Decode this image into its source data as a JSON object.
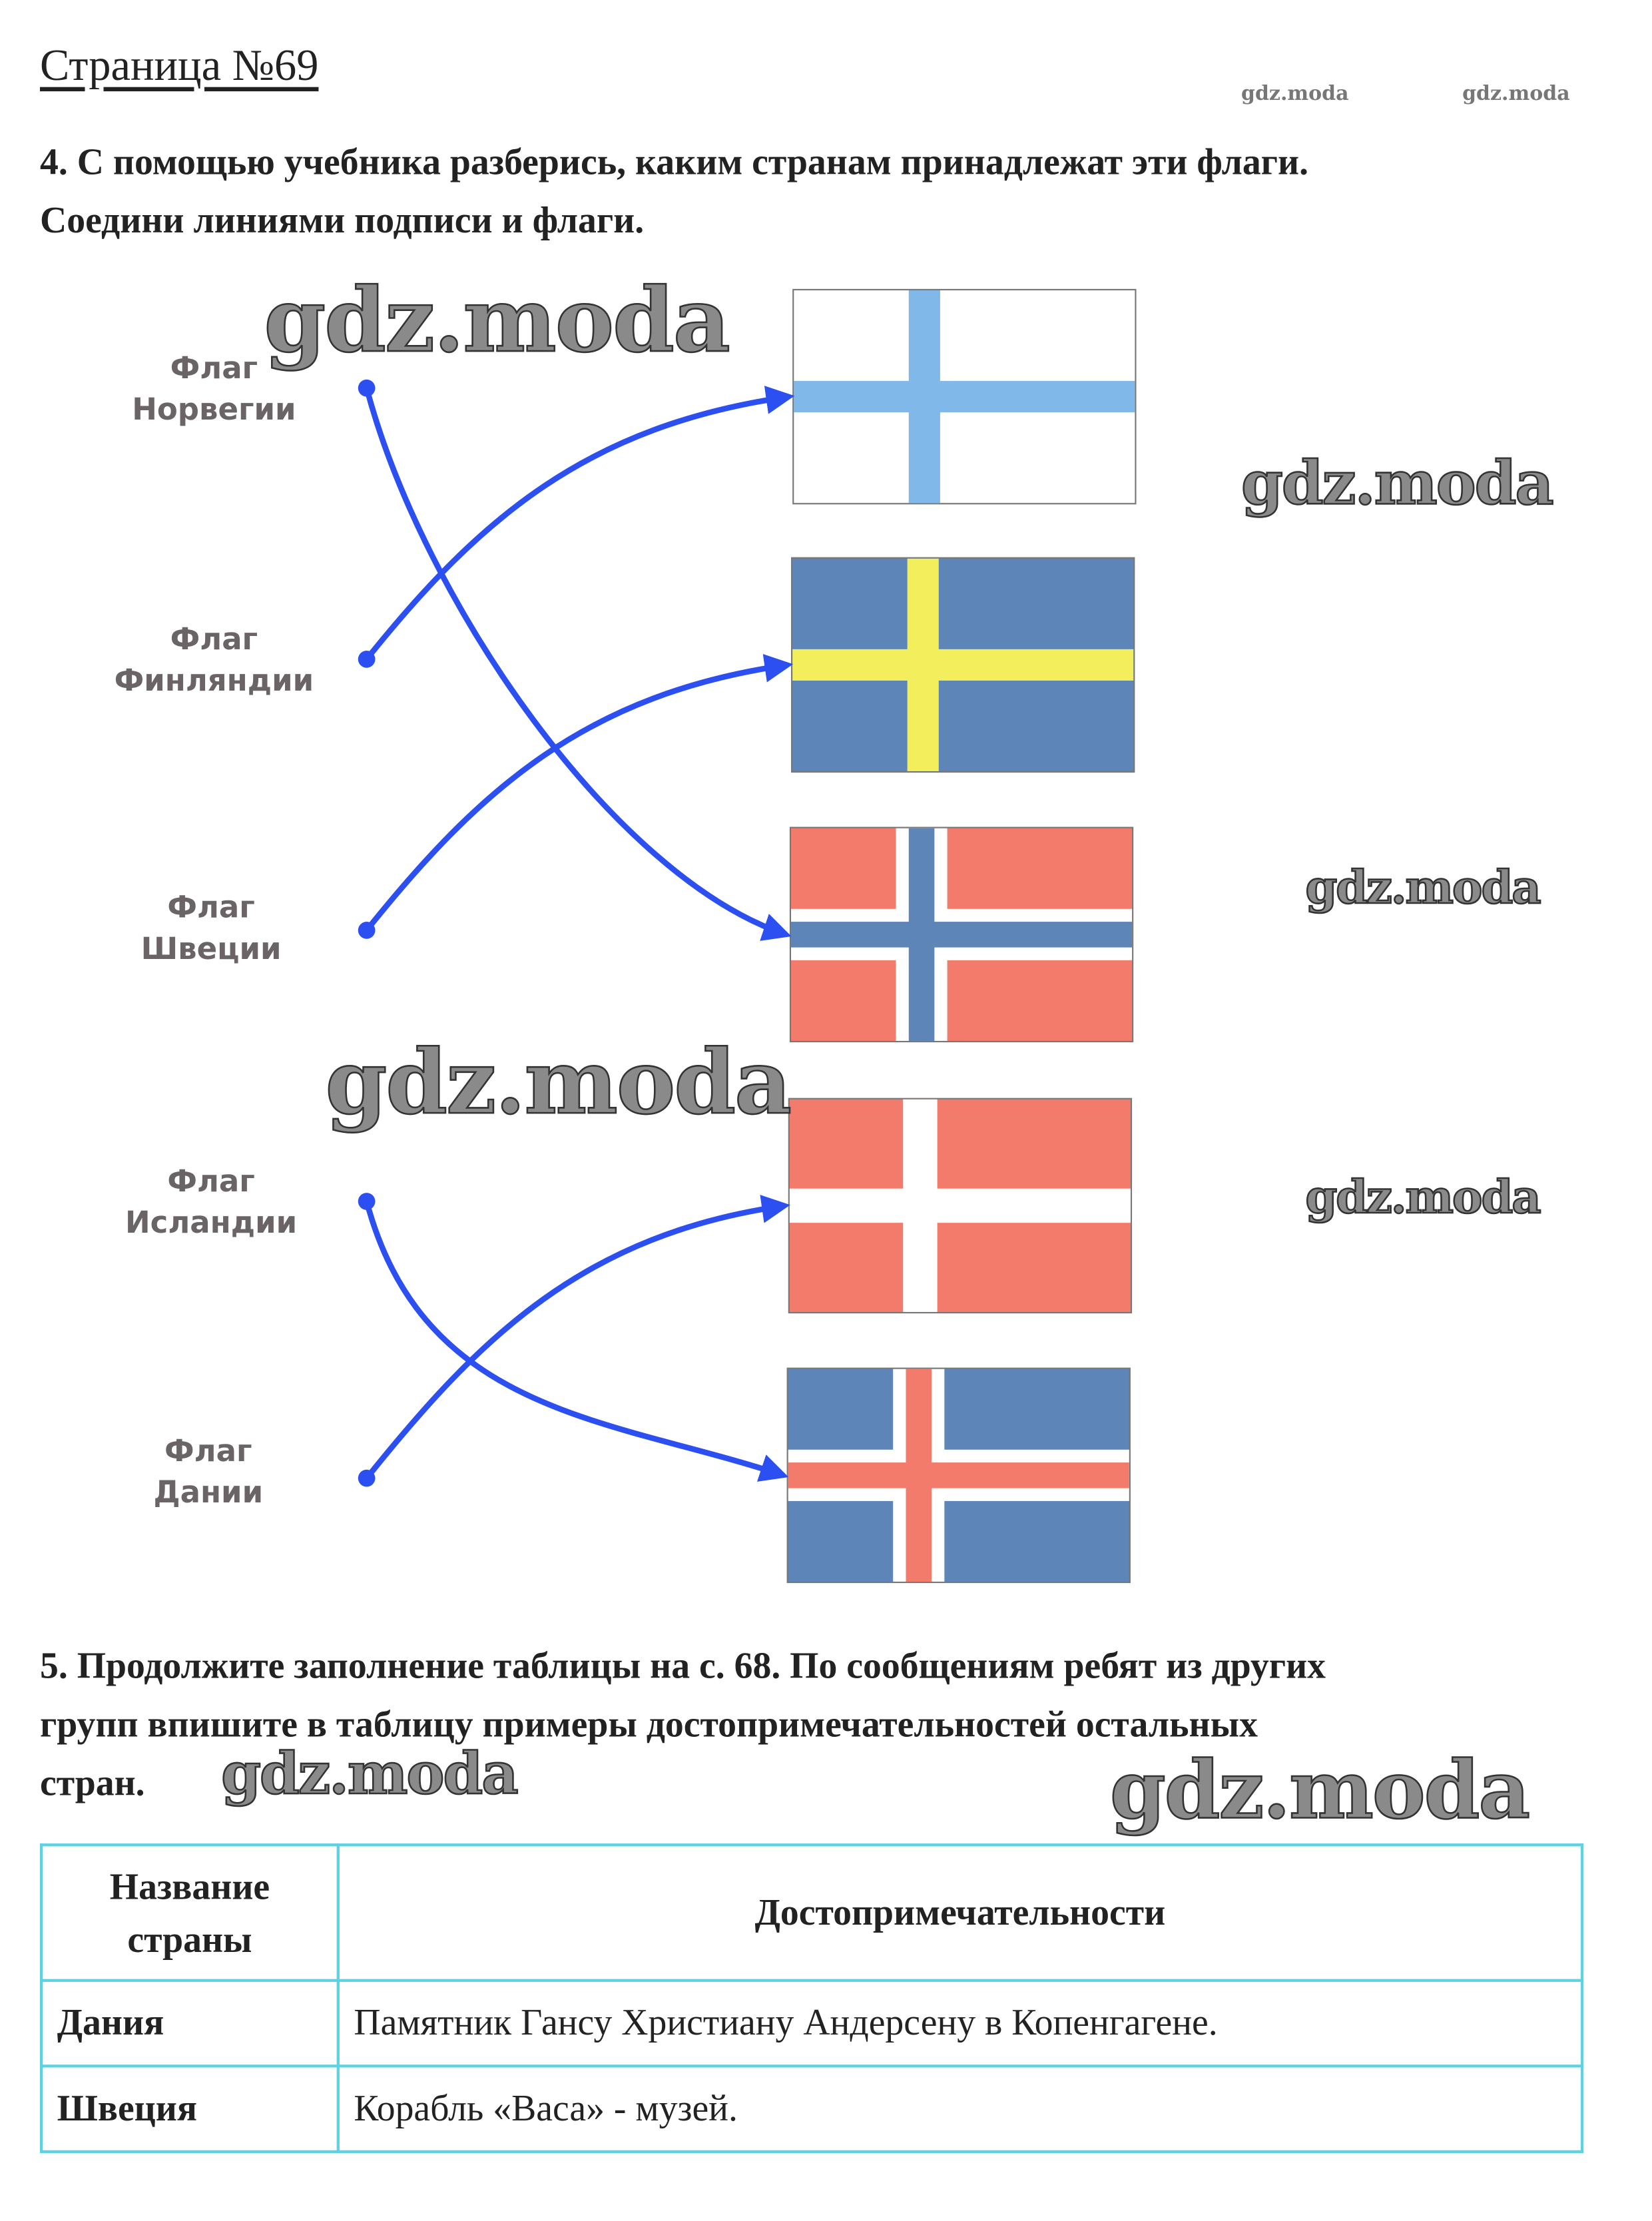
{
  "page_title": "Страница №69",
  "task4": {
    "line1": "4. С помощью учебника разберись, каким странам принадлежат эти флаги.",
    "line2": "Соедини линиями подписи и флаги.",
    "labels": [
      {
        "word": "Флаг",
        "country": "Норвегии"
      },
      {
        "word": "Флаг",
        "country": "Финляндии"
      },
      {
        "word": "Флаг",
        "country": "Швеции"
      },
      {
        "word": "Флаг",
        "country": "Исландии"
      },
      {
        "word": "Флаг",
        "country": "Дании"
      }
    ],
    "flags": [
      "finland",
      "sweden",
      "norway",
      "denmark",
      "iceland"
    ],
    "connections": [
      {
        "label": "Норвегии",
        "flag": "norway"
      },
      {
        "label": "Финляндии",
        "flag": "finland"
      },
      {
        "label": "Швеции",
        "flag": "sweden"
      },
      {
        "label": "Исландии",
        "flag": "iceland"
      },
      {
        "label": "Дании",
        "flag": "denmark"
      }
    ]
  },
  "task5": {
    "line1": "5. Продолжите заполнение таблицы на с. 68. По сообщениям ребят из других",
    "line2": "групп впишите в таблицу примеры достопримечательностей остальных",
    "line3": "стран."
  },
  "table": {
    "header_col1_line1": "Название",
    "header_col1_line2": "страны",
    "header_col2": "Достопримечательности",
    "rows": [
      {
        "country": "Дания",
        "sight": "Памятник Гансу Христиану Андерсену в Копенгагене."
      },
      {
        "country": "Швеция",
        "sight": "Корабль «Васа» - музей."
      }
    ]
  },
  "watermark": "gdz.moda",
  "colors": {
    "arrow": "#2b4ff0",
    "table_border": "#5dd2e2",
    "finland_blue": "#80b8ea",
    "nordic_blue": "#5e85b8",
    "sweden_yellow": "#f2ee5c",
    "red": "#f27b6b",
    "white": "#ffffff"
  }
}
